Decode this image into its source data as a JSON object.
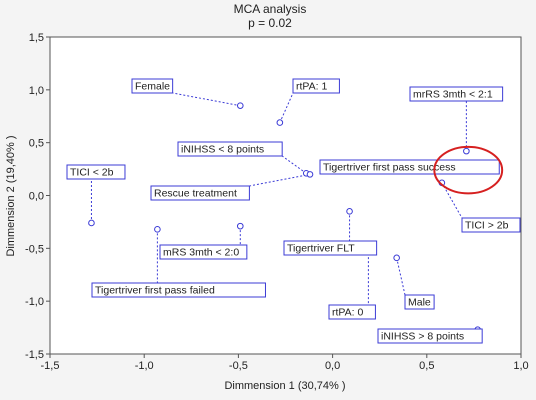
{
  "chart_data": {
    "type": "scatter",
    "title": "MCA analysis",
    "subtitle": "p = 0.02",
    "xlabel": "Dimmension 1 (30,74% )",
    "ylabel": "Dimmension 2 (19,40% )",
    "xlim": [
      -1.5,
      1.0
    ],
    "ylim": [
      -1.5,
      1.5
    ],
    "xticks": [
      "-1,5",
      "-1,0",
      "-0,5",
      "0,0",
      "0,5",
      "1,0"
    ],
    "yticks": [
      "1,5",
      "1,0",
      "0,5",
      "0,0",
      "-0,5",
      "-1,0",
      "-1,5"
    ],
    "grid": false,
    "points": [
      {
        "label": "Female",
        "x": -0.49,
        "y": 0.85
      },
      {
        "label": "rtPA: 1",
        "x": -0.28,
        "y": 0.69
      },
      {
        "label": "iNIHSS < 8 points",
        "x": -0.14,
        "y": 0.21
      },
      {
        "label": "Rescue treatment",
        "x": -0.12,
        "y": 0.2
      },
      {
        "label": "TICI < 2b",
        "x": -1.28,
        "y": -0.26
      },
      {
        "label": "mRS 3mth < 2:0",
        "x": -0.49,
        "y": -0.29
      },
      {
        "label": "Tigertriver first pass failed",
        "x": -0.93,
        "y": -0.32
      },
      {
        "label": "Tigertriver FLT",
        "x": 0.09,
        "y": -0.15
      },
      {
        "label": "rtPA: 0",
        "x": 0.19,
        "y": -0.47
      },
      {
        "label": "Male",
        "x": 0.34,
        "y": -0.59
      },
      {
        "label": "iNIHSS > 8 points",
        "x": 0.77,
        "y": -1.27
      },
      {
        "label": "mrRS 3mth < 2:1",
        "x": 0.71,
        "y": 0.42
      },
      {
        "label": "Tigertriver first pass success",
        "x": 0.77,
        "y": 0.26
      },
      {
        "label": "TICI > 2b",
        "x": 0.58,
        "y": 0.12
      }
    ],
    "annotation": {
      "shape": "ellipse",
      "color": "#d62020",
      "cx": 0.72,
      "cy": 0.24,
      "rx": 0.18,
      "ry": 0.22
    }
  }
}
